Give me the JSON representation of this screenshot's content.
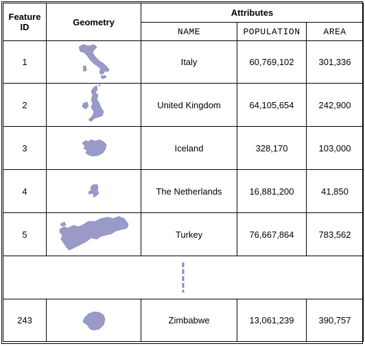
{
  "header": {
    "feature_id": "Feature ID",
    "geometry": "Geometry",
    "attributes": "Attributes",
    "columns": [
      "NAME",
      "POPULATION",
      "AREA"
    ]
  },
  "rows": [
    {
      "id": "1",
      "name": "Italy",
      "population": "60,769,102",
      "area": "301,336",
      "shape": "italy"
    },
    {
      "id": "2",
      "name": "United Kingdom",
      "population": "64,105,654",
      "area": "242,900",
      "shape": "uk"
    },
    {
      "id": "3",
      "name": "Iceland",
      "population": "328,170",
      "area": "103,000",
      "shape": "iceland"
    },
    {
      "id": "4",
      "name": "The Netherlands",
      "population": "16,881,200",
      "area": "41,850",
      "shape": "netherlands"
    },
    {
      "id": "5",
      "name": "Turkey",
      "population": "76,667,864",
      "area": "783,562",
      "shape": "turkey"
    }
  ],
  "last_row": {
    "id": "243",
    "name": "Zimbabwe",
    "population": "13,061,239",
    "area": "390,757",
    "shape": "zimbabwe"
  },
  "colors": {
    "shape_fill": "#9a9ac8",
    "shape_stroke": "#7c7cb0",
    "dash": "#8888bb"
  }
}
